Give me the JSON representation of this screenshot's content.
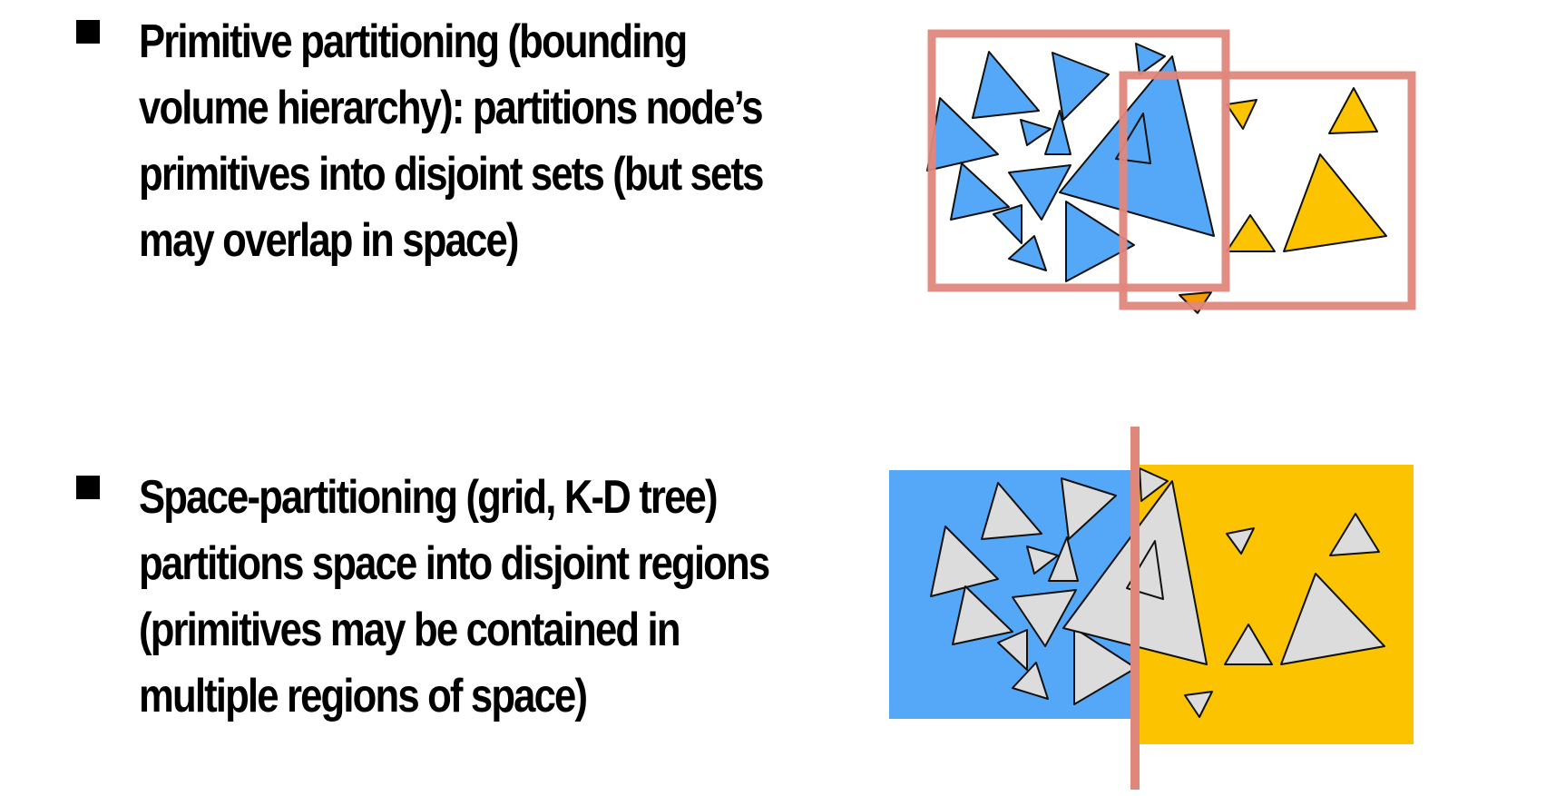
{
  "bullets": [
    {
      "lines": [
        "Primitive partitioning (bounding",
        "volume hierarchy): partitions node’s",
        "primitives into disjoint sets (but sets",
        "may overlap in space)"
      ]
    },
    {
      "lines": [
        "Space-partitioning (grid, K-D tree)",
        "partitions space into disjoint regions",
        "(primitives may be contained in",
        "multiple regions of space)"
      ]
    }
  ],
  "colors": {
    "blue": "#55a8f8",
    "yellow": "#fbc300",
    "orange": "#f59a00",
    "gray": "#dcdcdc",
    "partition_red": "#e0877c"
  }
}
